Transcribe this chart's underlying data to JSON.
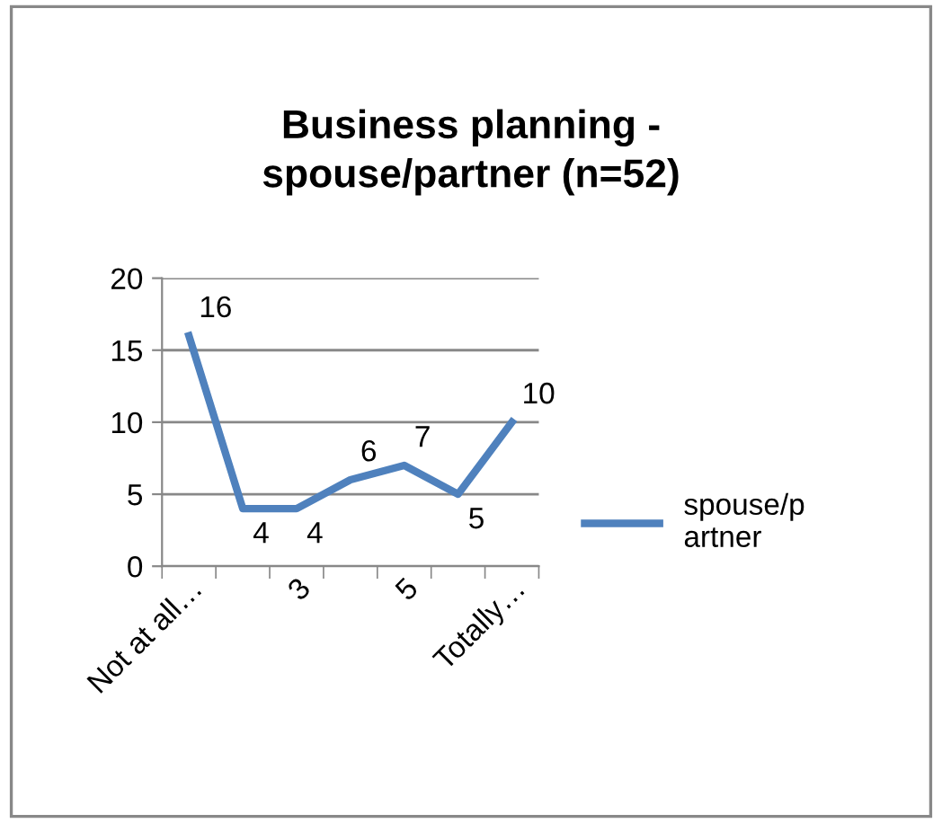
{
  "chart_data": {
    "type": "line",
    "title": "Business planning - spouse/partner (n=52)",
    "categories": [
      "Not at all…",
      null,
      "3",
      null,
      "5",
      null,
      "Totally…"
    ],
    "series": [
      {
        "name": "spouse/partner",
        "color": "#4f81bd",
        "values": [
          16,
          4,
          4,
          6,
          7,
          5,
          10
        ]
      }
    ],
    "ylim": [
      0,
      20
    ],
    "yticks": [
      0,
      5,
      10,
      15,
      20
    ],
    "grid": "y",
    "legend": "right",
    "data_labels": true,
    "marker": "none",
    "line_style": "solid"
  }
}
